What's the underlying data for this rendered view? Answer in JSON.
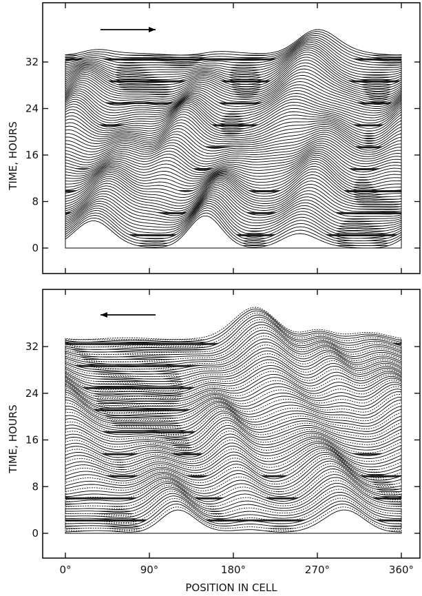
{
  "chart_data": [
    {
      "type": "ridgeline",
      "panel": "top",
      "direction_arrow": "right",
      "ylabel": "TIME, HOURS",
      "y_ticks": [
        "0",
        "8",
        "16",
        "24",
        "32"
      ],
      "y_tick_values": [
        0,
        8,
        16,
        24,
        32
      ],
      "ylim": [
        0,
        36
      ],
      "xlim": [
        0,
        360
      ],
      "grid": false,
      "legend": "none",
      "colors": {
        "line": "#000000",
        "background": "#ffffff"
      }
    },
    {
      "type": "ridgeline",
      "panel": "bottom",
      "direction_arrow": "left",
      "ylabel": "TIME, HOURS",
      "xlabel": "POSITION IN CELL",
      "y_ticks": [
        "0",
        "8",
        "16",
        "24",
        "32"
      ],
      "y_tick_values": [
        0,
        8,
        16,
        24,
        32
      ],
      "x_ticks": [
        "0°",
        "90°",
        "180°",
        "270°",
        "360°"
      ],
      "x_tick_values": [
        0,
        90,
        180,
        270,
        360
      ],
      "ylim": [
        0,
        36
      ],
      "xlim": [
        0,
        360
      ],
      "grid": false,
      "legend": "none",
      "colors": {
        "line": "#000000",
        "background": "#ffffff"
      }
    }
  ]
}
